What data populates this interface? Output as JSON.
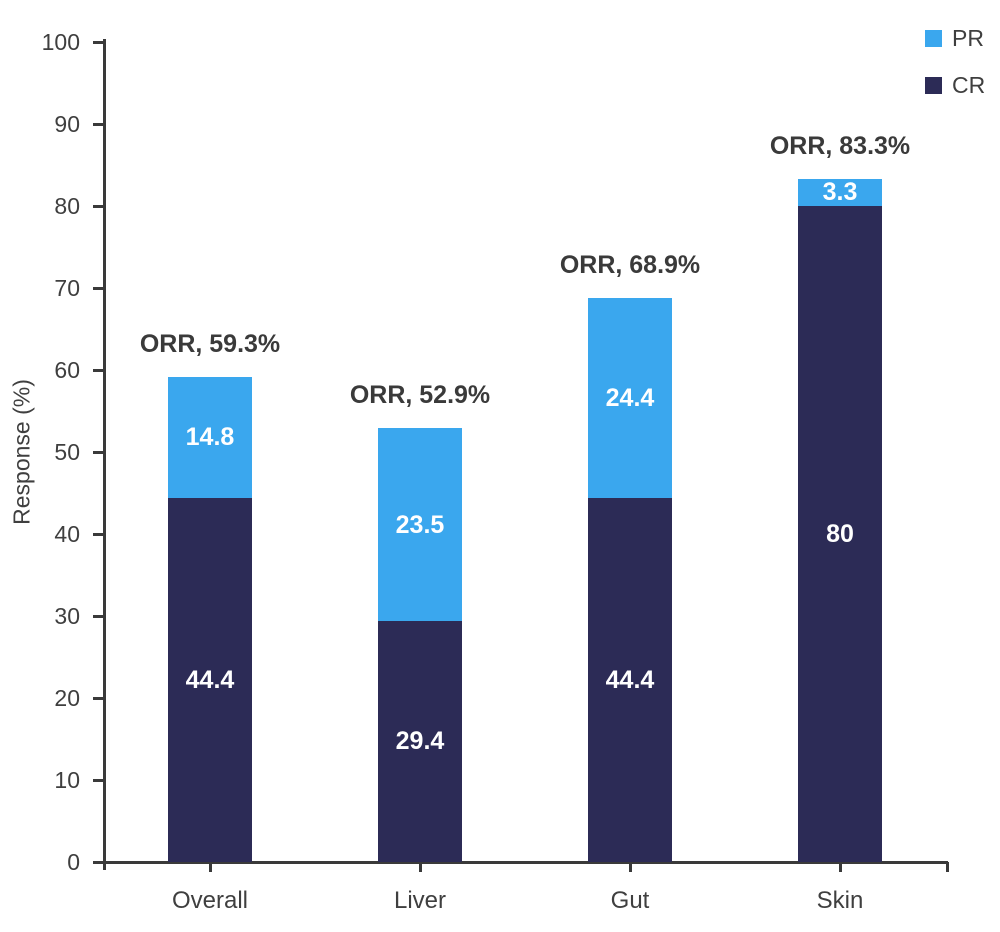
{
  "chart_data": {
    "type": "bar",
    "stacked": true,
    "title": "",
    "xlabel": "",
    "ylabel": "Response (%)",
    "ylim": [
      0,
      100
    ],
    "ytick_step": 10,
    "yticks": [
      "0",
      "10",
      "20",
      "30",
      "40",
      "50",
      "60",
      "70",
      "80",
      "90",
      "100"
    ],
    "categories": [
      "Overall",
      "Liver",
      "Gut",
      "Skin"
    ],
    "series": [
      {
        "name": "CR",
        "color": "#2C2B56",
        "values": [
          44.4,
          29.4,
          44.4,
          80
        ],
        "labels": [
          "44.4",
          "29.4",
          "44.4",
          "80"
        ]
      },
      {
        "name": "PR",
        "color": "#3AA7EE",
        "values": [
          14.8,
          23.5,
          24.4,
          3.3
        ],
        "labels": [
          "14.8",
          "23.5",
          "24.4",
          "3.3"
        ]
      }
    ],
    "bar_annotations": [
      "ORR, 59.3%",
      "ORR, 52.9%",
      "ORR, 68.9%",
      "ORR, 83.3%"
    ],
    "legend": [
      {
        "label": "PR",
        "color": "#3AA7EE"
      },
      {
        "label": "CR",
        "color": "#2C2B56"
      }
    ],
    "legend_position": "top-right",
    "grid": false
  },
  "colors": {
    "axis": "#3A3A3A",
    "tick_text": "#3F3F3F",
    "annotation_text": "#3A3A3A",
    "segment_label_text": "#FFFFFF",
    "background": "#FFFFFF"
  }
}
